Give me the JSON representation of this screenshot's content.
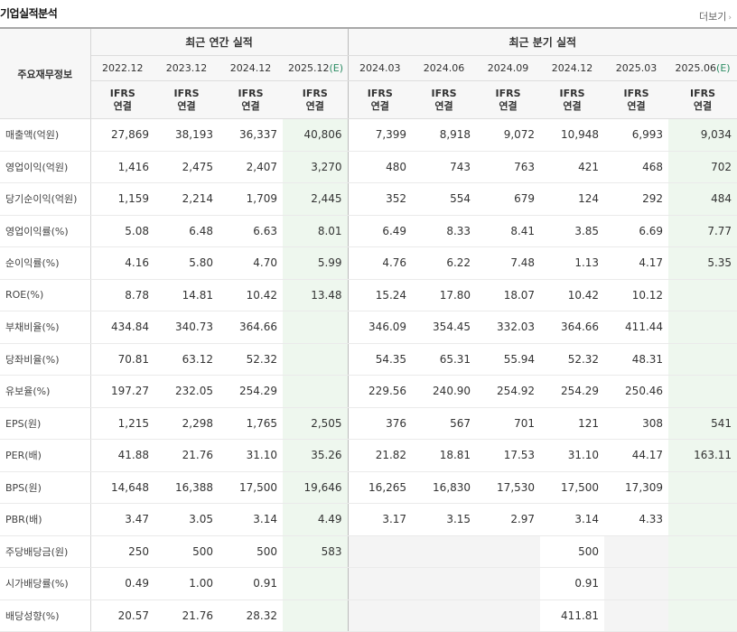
{
  "section": {
    "title": "기업실적분석",
    "more_label": "더보기"
  },
  "header": {
    "row_label": "주요재무정보",
    "annual_group": "최근 연간 실적",
    "quarter_group": "최근 분기 실적",
    "annual_periods": [
      "2022.12",
      "2023.12",
      "2024.12",
      "2025.12"
    ],
    "quarter_periods": [
      "2024.03",
      "2024.06",
      "2024.09",
      "2024.12",
      "2025.03",
      "2025.06"
    ],
    "est_marker": "(E)",
    "std_line1": "IFRS",
    "std_line2": "연결"
  },
  "rows": [
    {
      "label": "매출액(억원)",
      "values": [
        "27,869",
        "38,193",
        "36,337",
        "40,806",
        "7,399",
        "8,918",
        "9,072",
        "10,948",
        "6,993",
        "9,034"
      ]
    },
    {
      "label": "영업이익(억원)",
      "values": [
        "1,416",
        "2,475",
        "2,407",
        "3,270",
        "480",
        "743",
        "763",
        "421",
        "468",
        "702"
      ]
    },
    {
      "label": "당기순이익(억원)",
      "values": [
        "1,159",
        "2,214",
        "1,709",
        "2,445",
        "352",
        "554",
        "679",
        "124",
        "292",
        "484"
      ]
    },
    {
      "label": "영업이익률(%)",
      "values": [
        "5.08",
        "6.48",
        "6.63",
        "8.01",
        "6.49",
        "8.33",
        "8.41",
        "3.85",
        "6.69",
        "7.77"
      ]
    },
    {
      "label": "순이익률(%)",
      "values": [
        "4.16",
        "5.80",
        "4.70",
        "5.99",
        "4.76",
        "6.22",
        "7.48",
        "1.13",
        "4.17",
        "5.35"
      ]
    },
    {
      "label": "ROE(%)",
      "values": [
        "8.78",
        "14.81",
        "10.42",
        "13.48",
        "15.24",
        "17.80",
        "18.07",
        "10.42",
        "10.12",
        ""
      ]
    },
    {
      "label": "부채비율(%)",
      "values": [
        "434.84",
        "340.73",
        "364.66",
        "",
        "346.09",
        "354.45",
        "332.03",
        "364.66",
        "411.44",
        ""
      ]
    },
    {
      "label": "당좌비율(%)",
      "values": [
        "70.81",
        "63.12",
        "52.32",
        "",
        "54.35",
        "65.31",
        "55.94",
        "52.32",
        "48.31",
        ""
      ]
    },
    {
      "label": "유보율(%)",
      "values": [
        "197.27",
        "232.05",
        "254.29",
        "",
        "229.56",
        "240.90",
        "254.92",
        "254.29",
        "250.46",
        ""
      ]
    },
    {
      "label": "EPS(원)",
      "values": [
        "1,215",
        "2,298",
        "1,765",
        "2,505",
        "376",
        "567",
        "701",
        "121",
        "308",
        "541"
      ]
    },
    {
      "label": "PER(배)",
      "values": [
        "41.88",
        "21.76",
        "31.10",
        "35.26",
        "21.82",
        "18.81",
        "17.53",
        "31.10",
        "44.17",
        "163.11"
      ]
    },
    {
      "label": "BPS(원)",
      "values": [
        "14,648",
        "16,388",
        "17,500",
        "19,646",
        "16,265",
        "16,830",
        "17,530",
        "17,500",
        "17,309",
        ""
      ]
    },
    {
      "label": "PBR(배)",
      "values": [
        "3.47",
        "3.05",
        "3.14",
        "4.49",
        "3.17",
        "3.15",
        "2.97",
        "3.14",
        "4.33",
        ""
      ]
    },
    {
      "label": "주당배당금(원)",
      "values": [
        "250",
        "500",
        "500",
        "583",
        "",
        "",
        "",
        "500",
        "",
        ""
      ]
    },
    {
      "label": "시가배당률(%)",
      "values": [
        "0.49",
        "1.00",
        "0.91",
        "",
        "",
        "",
        "",
        "0.91",
        "",
        ""
      ]
    },
    {
      "label": "배당성향(%)",
      "values": [
        "20.57",
        "21.76",
        "28.32",
        "",
        "",
        "",
        "",
        "411.81",
        "",
        ""
      ]
    }
  ]
}
